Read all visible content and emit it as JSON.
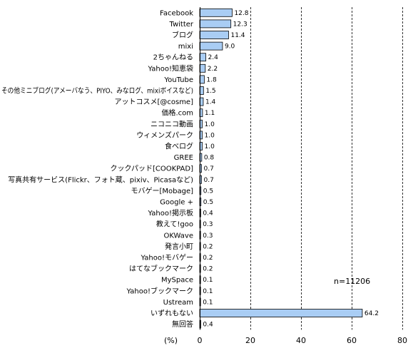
{
  "chart_data": {
    "type": "bar",
    "orientation": "horizontal",
    "categories": [
      "Facebook",
      "Twitter",
      "ブログ",
      "mixi",
      "2ちゃんねる",
      "Yahoo!知恵袋",
      "YouTube",
      "その他ミニブログ(アメーバなう、PIYO、みなログ、mixiボイスなど)",
      "アットコスメ[@cosme]",
      "価格.com",
      "ニコニコ動画",
      "ウィメンズパーク",
      "食べログ",
      "GREE",
      "クックパッド[COOKPAD]",
      "写真共有サービス(Flickr、フォト蔵、pixiv、Picasaなど)",
      "モバゲー[Mobage]",
      "Google +",
      "Yahoo!掲示板",
      "教えて!goo",
      "OKWave",
      "発言小町",
      "Yahoo!モバゲー",
      "はてなブックマーク",
      "MySpace",
      "Yahoo!ブックマーク",
      "Ustream",
      "いずれもない",
      "無回答"
    ],
    "values": [
      12.8,
      12.3,
      11.4,
      9.0,
      2.4,
      2.2,
      1.8,
      1.5,
      1.4,
      1.1,
      1.0,
      1.0,
      1.0,
      0.8,
      0.7,
      0.7,
      0.5,
      0.5,
      0.4,
      0.3,
      0.3,
      0.2,
      0.2,
      0.2,
      0.1,
      0.1,
      0.1,
      64.2,
      0.4
    ],
    "value_labels": [
      "12.8",
      "12.3",
      "11.4",
      "9.0",
      "2.4",
      "2.2",
      "1.8",
      "1.5",
      "1.4",
      "1.1",
      "1.0",
      "1.0",
      "1.0",
      "0.8",
      "0.7",
      "0.7",
      "0.5",
      "0.5",
      "0.4",
      "0.3",
      "0.3",
      "0.2",
      "0.2",
      "0.2",
      "0.1",
      "0.1",
      "0.1",
      "64.2",
      "0.4"
    ],
    "xlim": [
      0,
      80
    ],
    "xticks": [
      "0",
      "20",
      "40",
      "60",
      "80"
    ],
    "xlabel": "(%)",
    "annotation": "n=11206",
    "grid": "vertical dashed",
    "legend": "none",
    "bar_color": "#a9cdf4",
    "bar_border_color": "#000000"
  }
}
